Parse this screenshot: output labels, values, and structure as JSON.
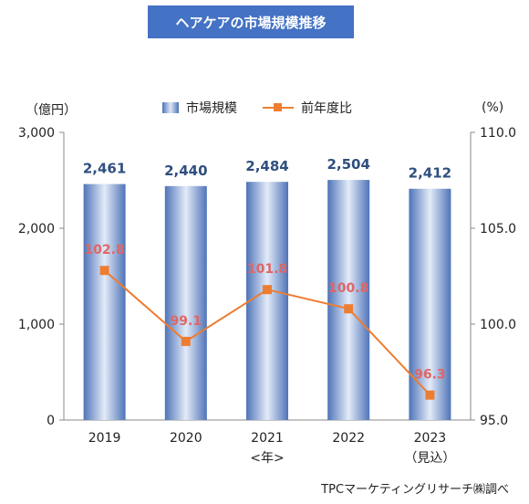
{
  "title": "ヘアケアの市場規模推移",
  "y_left_unit": "（億円）",
  "y_right_unit": "(%)",
  "source": "TPCマーケティングリサーチ㈱調べ",
  "chart_data": {
    "type": "bar",
    "categories": [
      "2019",
      "2020",
      "2021",
      "2022",
      "2023"
    ],
    "category_sublabels": [
      "",
      "",
      "<年>",
      "",
      "（見込）"
    ],
    "series": [
      {
        "name": "市場規模",
        "type": "bar",
        "axis": "left",
        "color": "#4f74b8",
        "values": [
          2461,
          2440,
          2484,
          2504,
          2412
        ],
        "value_labels": [
          "2,461",
          "2,440",
          "2,484",
          "2,504",
          "2,412"
        ]
      },
      {
        "name": "前年度比",
        "type": "line",
        "axis": "right",
        "color": "#ed7d31",
        "values": [
          102.8,
          99.1,
          101.8,
          100.8,
          96.3
        ],
        "value_labels": [
          "102.8",
          "99.1",
          "101.8",
          "100.8",
          "96.3"
        ]
      }
    ],
    "y_left": {
      "min": 0,
      "max": 3000,
      "ticks": [
        "0",
        "1,000",
        "2,000",
        "3,000"
      ]
    },
    "y_right": {
      "min": 95,
      "max": 110,
      "ticks": [
        "95.0",
        "100.0",
        "105.0",
        "110.0"
      ]
    },
    "grid": false,
    "legend": "top"
  }
}
